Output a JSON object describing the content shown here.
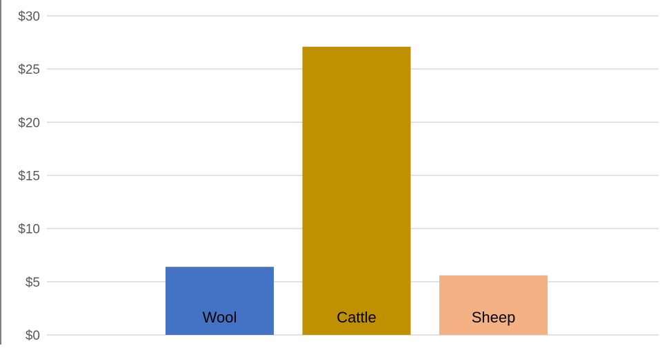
{
  "chart_data": {
    "type": "bar",
    "categories": [
      "Wool",
      "Cattle",
      "Sheep"
    ],
    "values": [
      6.4,
      27.1,
      5.6
    ],
    "colors": [
      "#4472c4",
      "#bf9000",
      "#f4b183"
    ],
    "ylim": [
      0,
      30
    ],
    "yticks": [
      {
        "value": 0,
        "label": "$0"
      },
      {
        "value": 5,
        "label": "$5"
      },
      {
        "value": 10,
        "label": "$10"
      },
      {
        "value": 15,
        "label": "$15"
      },
      {
        "value": 20,
        "label": "$20"
      },
      {
        "value": 25,
        "label": "$25"
      },
      {
        "value": 30,
        "label": "$30"
      }
    ],
    "grid": true,
    "label_color": "#000000",
    "axis_label_color": "#595959",
    "gridline_color": "#d9d9d9"
  }
}
